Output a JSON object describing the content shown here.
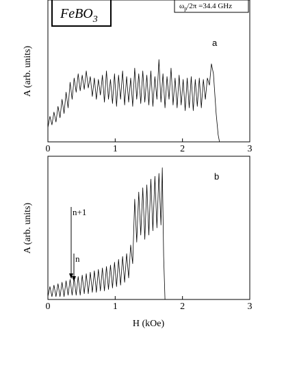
{
  "chart_data": [
    {
      "type": "line",
      "panel": "a",
      "ylabel": "A (arb. units)",
      "material": {
        "text": "FeBO",
        "subscript": "3"
      },
      "frequency": {
        "text": "ω",
        "subscript": "p",
        "rest": "/2π =34.4 GHz"
      },
      "xlim": [
        0,
        3
      ],
      "xticks": [
        0,
        1,
        2,
        3
      ],
      "ylim": [
        0,
        1
      ],
      "x": [
        0,
        0.03,
        0.06,
        0.09,
        0.12,
        0.15,
        0.18,
        0.21,
        0.24,
        0.27,
        0.3,
        0.33,
        0.36,
        0.39,
        0.42,
        0.45,
        0.48,
        0.51,
        0.54,
        0.57,
        0.6,
        0.63,
        0.66,
        0.69,
        0.72,
        0.75,
        0.78,
        0.81,
        0.84,
        0.87,
        0.9,
        0.93,
        0.96,
        0.99,
        1.02,
        1.05,
        1.08,
        1.11,
        1.14,
        1.17,
        1.2,
        1.23,
        1.26,
        1.29,
        1.32,
        1.35,
        1.38,
        1.41,
        1.44,
        1.47,
        1.5,
        1.53,
        1.56,
        1.59,
        1.62,
        1.65,
        1.68,
        1.71,
        1.74,
        1.77,
        1.8,
        1.83,
        1.86,
        1.89,
        1.92,
        1.95,
        1.98,
        2.01,
        2.04,
        2.07,
        2.1,
        2.13,
        2.16,
        2.19,
        2.22,
        2.25,
        2.28,
        2.31,
        2.34,
        2.37,
        2.4,
        2.43,
        2.46,
        2.5,
        2.53,
        2.55
      ],
      "series": [
        {
          "color": "#000000",
          "values": [
            0.1,
            0.18,
            0.12,
            0.21,
            0.14,
            0.25,
            0.17,
            0.3,
            0.2,
            0.35,
            0.24,
            0.42,
            0.3,
            0.45,
            0.35,
            0.48,
            0.36,
            0.47,
            0.37,
            0.5,
            0.38,
            0.46,
            0.32,
            0.45,
            0.3,
            0.44,
            0.33,
            0.47,
            0.28,
            0.5,
            0.3,
            0.44,
            0.27,
            0.48,
            0.25,
            0.47,
            0.3,
            0.5,
            0.26,
            0.46,
            0.28,
            0.45,
            0.25,
            0.52,
            0.3,
            0.48,
            0.27,
            0.5,
            0.28,
            0.47,
            0.26,
            0.5,
            0.25,
            0.46,
            0.3,
            0.58,
            0.28,
            0.48,
            0.24,
            0.46,
            0.3,
            0.52,
            0.26,
            0.45,
            0.24,
            0.47,
            0.26,
            0.44,
            0.22,
            0.45,
            0.24,
            0.46,
            0.22,
            0.44,
            0.25,
            0.45,
            0.24,
            0.44,
            0.3,
            0.45,
            0.4,
            0.55,
            0.48,
            0.2,
            0.05,
            0
          ]
        }
      ]
    },
    {
      "type": "line",
      "panel": "b",
      "ylabel": "A (arb. units)",
      "xlabel": "H (kOe)",
      "annotations": [
        "n+1",
        "n"
      ],
      "xlim": [
        0,
        3
      ],
      "xticks": [
        0,
        1,
        2,
        3
      ],
      "ylim": [
        0,
        1
      ],
      "x": [
        0,
        0.03,
        0.06,
        0.09,
        0.12,
        0.15,
        0.18,
        0.21,
        0.24,
        0.27,
        0.3,
        0.33,
        0.36,
        0.39,
        0.42,
        0.45,
        0.48,
        0.51,
        0.54,
        0.57,
        0.6,
        0.63,
        0.66,
        0.69,
        0.72,
        0.75,
        0.78,
        0.81,
        0.84,
        0.87,
        0.9,
        0.93,
        0.96,
        0.99,
        1.02,
        1.05,
        1.08,
        1.11,
        1.14,
        1.17,
        1.2,
        1.23,
        1.26,
        1.29,
        1.32,
        1.35,
        1.38,
        1.41,
        1.44,
        1.47,
        1.5,
        1.53,
        1.56,
        1.59,
        1.62,
        1.65,
        1.68,
        1.7,
        1.72,
        1.74
      ],
      "series": [
        {
          "color": "#000000",
          "values": [
            0.02,
            0.09,
            0.02,
            0.1,
            0.02,
            0.11,
            0.02,
            0.12,
            0.02,
            0.13,
            0.03,
            0.14,
            0.03,
            0.15,
            0.03,
            0.16,
            0.03,
            0.17,
            0.04,
            0.18,
            0.04,
            0.19,
            0.05,
            0.2,
            0.05,
            0.21,
            0.06,
            0.22,
            0.06,
            0.23,
            0.07,
            0.24,
            0.08,
            0.26,
            0.09,
            0.28,
            0.1,
            0.3,
            0.12,
            0.32,
            0.15,
            0.38,
            0.25,
            0.7,
            0.4,
            0.75,
            0.45,
            0.78,
            0.42,
            0.8,
            0.45,
            0.84,
            0.48,
            0.86,
            0.5,
            0.88,
            0.52,
            0.92,
            0.3,
            0
          ]
        }
      ]
    }
  ]
}
